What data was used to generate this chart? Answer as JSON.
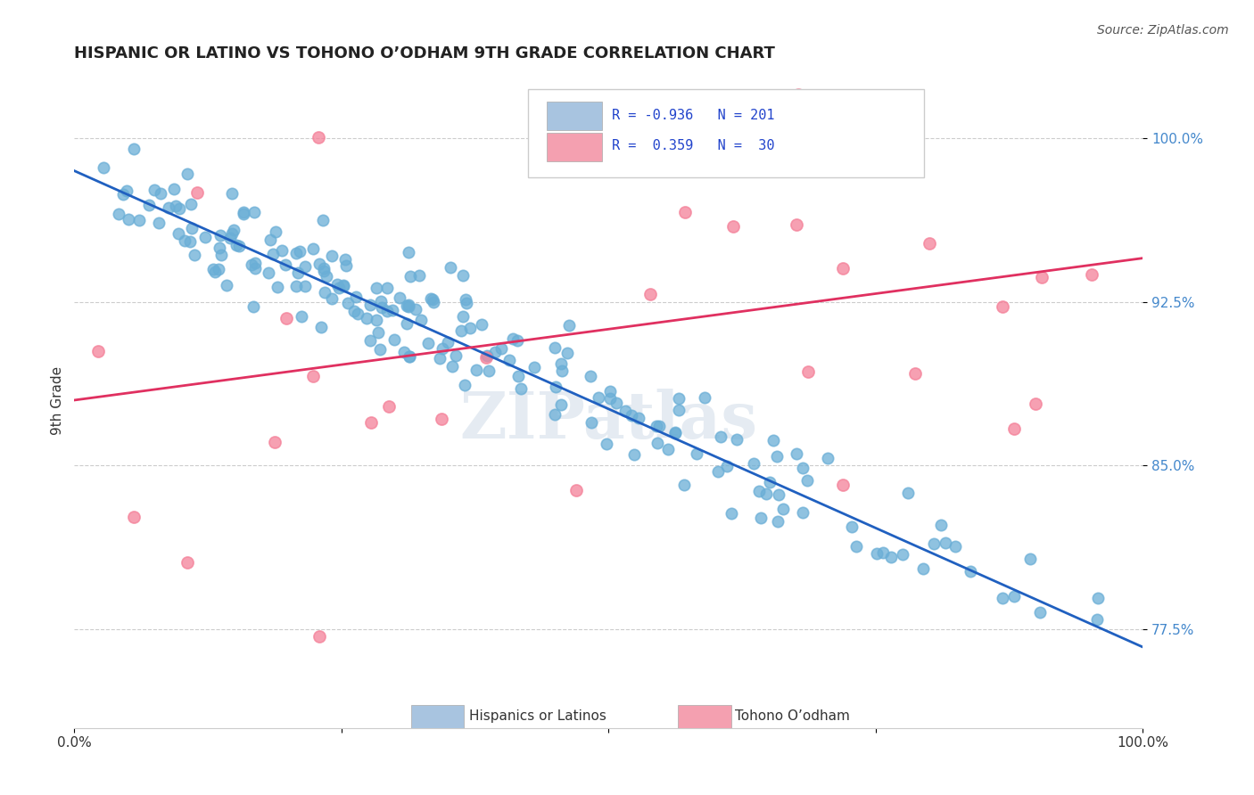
{
  "title": "HISPANIC OR LATINO VS TOHONO O’ODHAM 9TH GRADE CORRELATION CHART",
  "source": "Source: ZipAtlas.com",
  "ylabel": "9th Grade",
  "ytick_labels": [
    "77.5%",
    "85.0%",
    "92.5%",
    "100.0%"
  ],
  "ytick_values": [
    0.775,
    0.85,
    0.925,
    1.0
  ],
  "legend_entries": [
    {
      "label": "Hispanics or Latinos",
      "color": "#a8c4e0",
      "R": -0.936,
      "N": 201
    },
    {
      "label": "Tohono O’odham",
      "color": "#f4a0b0",
      "R": 0.359,
      "N": 30
    }
  ],
  "blue_scatter_color": "#6aaed6",
  "pink_scatter_color": "#f48098",
  "blue_line_color": "#2060c0",
  "pink_line_color": "#e03060",
  "watermark": "ZIPatlas",
  "blue_R": -0.936,
  "blue_N": 201,
  "pink_R": 0.359,
  "pink_N": 30,
  "xmin": 0.0,
  "xmax": 1.0,
  "ymin": 0.73,
  "ymax": 1.03,
  "blue_intercept": 0.985,
  "blue_slope": -0.218,
  "pink_intercept": 0.88,
  "pink_slope": 0.065
}
